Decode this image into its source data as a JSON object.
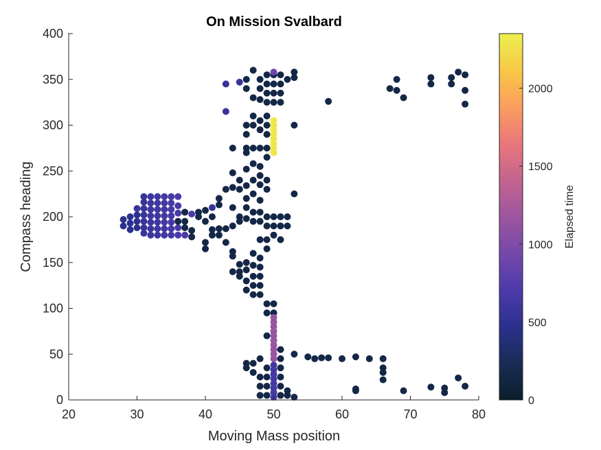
{
  "chart_data": {
    "type": "scatter",
    "title": "On Mission Svalbard",
    "xlabel": "Moving Mass position",
    "ylabel": "Compass heading",
    "xlim": [
      20,
      80
    ],
    "ylim": [
      0,
      400
    ],
    "xticks": [
      20,
      30,
      40,
      50,
      60,
      70,
      80
    ],
    "yticks": [
      0,
      50,
      100,
      150,
      200,
      250,
      300,
      350,
      400
    ],
    "grid": false,
    "legend": "none",
    "colorbar": {
      "label": "Elapsed time",
      "range": [
        0,
        2350
      ],
      "ticks": [
        0,
        500,
        1000,
        1500,
        2000
      ],
      "colormap": [
        "#0a1e2b",
        "#1a2c55",
        "#2b318e",
        "#4d3aab",
        "#7548aa",
        "#9d569f",
        "#c46390",
        "#e9777c",
        "#fb9d5e",
        "#f8c846",
        "#ecf04f"
      ]
    },
    "points": [
      {
        "x": 28,
        "y": 190,
        "c": 480
      },
      {
        "x": 28,
        "y": 197,
        "c": 480
      },
      {
        "x": 29,
        "y": 186,
        "c": 480
      },
      {
        "x": 29,
        "y": 193,
        "c": 480
      },
      {
        "x": 29,
        "y": 200,
        "c": 480
      },
      {
        "x": 30,
        "y": 188,
        "c": 480
      },
      {
        "x": 30,
        "y": 195,
        "c": 480
      },
      {
        "x": 30,
        "y": 202,
        "c": 480
      },
      {
        "x": 30,
        "y": 209,
        "c": 560
      },
      {
        "x": 31,
        "y": 182,
        "c": 560
      },
      {
        "x": 31,
        "y": 188,
        "c": 560
      },
      {
        "x": 31,
        "y": 195,
        "c": 560
      },
      {
        "x": 31,
        "y": 202,
        "c": 560
      },
      {
        "x": 31,
        "y": 209,
        "c": 560
      },
      {
        "x": 31,
        "y": 216,
        "c": 560
      },
      {
        "x": 31,
        "y": 222,
        "c": 560
      },
      {
        "x": 32,
        "y": 180,
        "c": 600
      },
      {
        "x": 32,
        "y": 187,
        "c": 600
      },
      {
        "x": 32,
        "y": 194,
        "c": 600
      },
      {
        "x": 32,
        "y": 201,
        "c": 600
      },
      {
        "x": 32,
        "y": 208,
        "c": 600
      },
      {
        "x": 32,
        "y": 215,
        "c": 600
      },
      {
        "x": 32,
        "y": 222,
        "c": 600
      },
      {
        "x": 33,
        "y": 180,
        "c": 620
      },
      {
        "x": 33,
        "y": 187,
        "c": 620
      },
      {
        "x": 33,
        "y": 194,
        "c": 620
      },
      {
        "x": 33,
        "y": 201,
        "c": 620
      },
      {
        "x": 33,
        "y": 208,
        "c": 620
      },
      {
        "x": 33,
        "y": 215,
        "c": 620
      },
      {
        "x": 33,
        "y": 222,
        "c": 620
      },
      {
        "x": 34,
        "y": 180,
        "c": 640
      },
      {
        "x": 34,
        "y": 187,
        "c": 640
      },
      {
        "x": 34,
        "y": 194,
        "c": 640
      },
      {
        "x": 34,
        "y": 201,
        "c": 640
      },
      {
        "x": 34,
        "y": 208,
        "c": 640
      },
      {
        "x": 34,
        "y": 215,
        "c": 640
      },
      {
        "x": 34,
        "y": 222,
        "c": 640
      },
      {
        "x": 35,
        "y": 180,
        "c": 660
      },
      {
        "x": 35,
        "y": 187,
        "c": 660
      },
      {
        "x": 35,
        "y": 194,
        "c": 660
      },
      {
        "x": 35,
        "y": 201,
        "c": 660
      },
      {
        "x": 35,
        "y": 208,
        "c": 660
      },
      {
        "x": 35,
        "y": 215,
        "c": 660
      },
      {
        "x": 35,
        "y": 222,
        "c": 660
      },
      {
        "x": 36,
        "y": 180,
        "c": 680
      },
      {
        "x": 36,
        "y": 188,
        "c": 680
      },
      {
        "x": 36,
        "y": 204,
        "c": 680
      },
      {
        "x": 36,
        "y": 212,
        "c": 680
      },
      {
        "x": 36,
        "y": 222,
        "c": 680
      },
      {
        "x": 37,
        "y": 180,
        "c": 700
      },
      {
        "x": 38,
        "y": 203,
        "c": 700
      },
      {
        "x": 41,
        "y": 210,
        "c": 560
      },
      {
        "x": 36,
        "y": 195,
        "c": 150
      },
      {
        "x": 37,
        "y": 195,
        "c": 150
      },
      {
        "x": 37,
        "y": 205,
        "c": 150
      },
      {
        "x": 37,
        "y": 188,
        "c": 150
      },
      {
        "x": 38,
        "y": 185,
        "c": 150
      },
      {
        "x": 38,
        "y": 178,
        "c": 150
      },
      {
        "x": 39,
        "y": 200,
        "c": 150
      },
      {
        "x": 39,
        "y": 205,
        "c": 150
      },
      {
        "x": 40,
        "y": 195,
        "c": 150
      },
      {
        "x": 40,
        "y": 207,
        "c": 150
      },
      {
        "x": 40,
        "y": 165,
        "c": 150
      },
      {
        "x": 40,
        "y": 172,
        "c": 150
      },
      {
        "x": 41,
        "y": 186,
        "c": 150
      },
      {
        "x": 41,
        "y": 180,
        "c": 150
      },
      {
        "x": 41,
        "y": 200,
        "c": 150
      },
      {
        "x": 42,
        "y": 187,
        "c": 150
      },
      {
        "x": 42,
        "y": 180,
        "c": 150
      },
      {
        "x": 42,
        "y": 213,
        "c": 150
      },
      {
        "x": 42,
        "y": 220,
        "c": 150
      },
      {
        "x": 43,
        "y": 187,
        "c": 150
      },
      {
        "x": 43,
        "y": 172,
        "c": 150
      },
      {
        "x": 43,
        "y": 230,
        "c": 150
      },
      {
        "x": 44,
        "y": 275,
        "c": 150
      },
      {
        "x": 44,
        "y": 248,
        "c": 150
      },
      {
        "x": 44,
        "y": 232,
        "c": 150
      },
      {
        "x": 44,
        "y": 210,
        "c": 150
      },
      {
        "x": 44,
        "y": 190,
        "c": 150
      },
      {
        "x": 44,
        "y": 162,
        "c": 150
      },
      {
        "x": 44,
        "y": 157,
        "c": 150
      },
      {
        "x": 44,
        "y": 140,
        "c": 150
      },
      {
        "x": 45,
        "y": 240,
        "c": 150
      },
      {
        "x": 45,
        "y": 230,
        "c": 150
      },
      {
        "x": 45,
        "y": 200,
        "c": 150
      },
      {
        "x": 45,
        "y": 195,
        "c": 150
      },
      {
        "x": 45,
        "y": 148,
        "c": 150
      },
      {
        "x": 45,
        "y": 140,
        "c": 150
      },
      {
        "x": 45,
        "y": 135,
        "c": 150
      },
      {
        "x": 46,
        "y": 350,
        "c": 150
      },
      {
        "x": 46,
        "y": 340,
        "c": 150
      },
      {
        "x": 46,
        "y": 300,
        "c": 150
      },
      {
        "x": 46,
        "y": 290,
        "c": 150
      },
      {
        "x": 46,
        "y": 275,
        "c": 150
      },
      {
        "x": 46,
        "y": 270,
        "c": 150
      },
      {
        "x": 46,
        "y": 252,
        "c": 150
      },
      {
        "x": 46,
        "y": 234,
        "c": 150
      },
      {
        "x": 46,
        "y": 220,
        "c": 150
      },
      {
        "x": 46,
        "y": 210,
        "c": 150
      },
      {
        "x": 46,
        "y": 198,
        "c": 150
      },
      {
        "x": 46,
        "y": 150,
        "c": 150
      },
      {
        "x": 46,
        "y": 142,
        "c": 150
      },
      {
        "x": 46,
        "y": 130,
        "c": 150
      },
      {
        "x": 46,
        "y": 120,
        "c": 150
      },
      {
        "x": 46,
        "y": 40,
        "c": 150
      },
      {
        "x": 46,
        "y": 35,
        "c": 150
      },
      {
        "x": 47,
        "y": 360,
        "c": 150
      },
      {
        "x": 47,
        "y": 330,
        "c": 150
      },
      {
        "x": 47,
        "y": 310,
        "c": 150
      },
      {
        "x": 47,
        "y": 300,
        "c": 150
      },
      {
        "x": 47,
        "y": 275,
        "c": 150
      },
      {
        "x": 47,
        "y": 258,
        "c": 150
      },
      {
        "x": 47,
        "y": 240,
        "c": 150
      },
      {
        "x": 47,
        "y": 225,
        "c": 150
      },
      {
        "x": 47,
        "y": 205,
        "c": 150
      },
      {
        "x": 47,
        "y": 195,
        "c": 150
      },
      {
        "x": 47,
        "y": 160,
        "c": 150
      },
      {
        "x": 47,
        "y": 147,
        "c": 150
      },
      {
        "x": 47,
        "y": 135,
        "c": 150
      },
      {
        "x": 47,
        "y": 125,
        "c": 150
      },
      {
        "x": 47,
        "y": 115,
        "c": 150
      },
      {
        "x": 47,
        "y": 40,
        "c": 150
      },
      {
        "x": 47,
        "y": 30,
        "c": 150
      },
      {
        "x": 48,
        "y": 350,
        "c": 150
      },
      {
        "x": 48,
        "y": 340,
        "c": 150
      },
      {
        "x": 48,
        "y": 328,
        "c": 150
      },
      {
        "x": 48,
        "y": 305,
        "c": 150
      },
      {
        "x": 48,
        "y": 295,
        "c": 150
      },
      {
        "x": 48,
        "y": 275,
        "c": 150
      },
      {
        "x": 48,
        "y": 255,
        "c": 150
      },
      {
        "x": 48,
        "y": 245,
        "c": 150
      },
      {
        "x": 48,
        "y": 235,
        "c": 150
      },
      {
        "x": 48,
        "y": 218,
        "c": 150
      },
      {
        "x": 48,
        "y": 205,
        "c": 150
      },
      {
        "x": 48,
        "y": 195,
        "c": 150
      },
      {
        "x": 48,
        "y": 175,
        "c": 150
      },
      {
        "x": 48,
        "y": 155,
        "c": 150
      },
      {
        "x": 48,
        "y": 145,
        "c": 150
      },
      {
        "x": 48,
        "y": 135,
        "c": 150
      },
      {
        "x": 48,
        "y": 125,
        "c": 150
      },
      {
        "x": 48,
        "y": 115,
        "c": 150
      },
      {
        "x": 48,
        "y": 45,
        "c": 150
      },
      {
        "x": 48,
        "y": 25,
        "c": 150
      },
      {
        "x": 48,
        "y": 15,
        "c": 150
      },
      {
        "x": 48,
        "y": 5,
        "c": 150
      },
      {
        "x": 49,
        "y": 355,
        "c": 150
      },
      {
        "x": 49,
        "y": 345,
        "c": 150
      },
      {
        "x": 49,
        "y": 335,
        "c": 150
      },
      {
        "x": 49,
        "y": 325,
        "c": 150
      },
      {
        "x": 49,
        "y": 310,
        "c": 150
      },
      {
        "x": 49,
        "y": 300,
        "c": 150
      },
      {
        "x": 49,
        "y": 290,
        "c": 150
      },
      {
        "x": 49,
        "y": 275,
        "c": 150
      },
      {
        "x": 49,
        "y": 265,
        "c": 150
      },
      {
        "x": 49,
        "y": 240,
        "c": 150
      },
      {
        "x": 49,
        "y": 230,
        "c": 150
      },
      {
        "x": 49,
        "y": 200,
        "c": 150
      },
      {
        "x": 49,
        "y": 190,
        "c": 150
      },
      {
        "x": 49,
        "y": 175,
        "c": 150
      },
      {
        "x": 49,
        "y": 165,
        "c": 150
      },
      {
        "x": 49,
        "y": 105,
        "c": 150
      },
      {
        "x": 49,
        "y": 95,
        "c": 150
      },
      {
        "x": 49,
        "y": 70,
        "c": 150
      },
      {
        "x": 49,
        "y": 35,
        "c": 150
      },
      {
        "x": 49,
        "y": 25,
        "c": 150
      },
      {
        "x": 49,
        "y": 15,
        "c": 150
      },
      {
        "x": 49,
        "y": 5,
        "c": 150
      },
      {
        "x": 50,
        "y": 355,
        "c": 150
      },
      {
        "x": 50,
        "y": 345,
        "c": 150
      },
      {
        "x": 50,
        "y": 335,
        "c": 150
      },
      {
        "x": 50,
        "y": 325,
        "c": 150
      },
      {
        "x": 50,
        "y": 200,
        "c": 150
      },
      {
        "x": 50,
        "y": 190,
        "c": 150
      },
      {
        "x": 50,
        "y": 180,
        "c": 150
      },
      {
        "x": 50,
        "y": 105,
        "c": 150
      },
      {
        "x": 50,
        "y": 95,
        "c": 150
      },
      {
        "x": 51,
        "y": 355,
        "c": 150
      },
      {
        "x": 51,
        "y": 345,
        "c": 150
      },
      {
        "x": 51,
        "y": 335,
        "c": 150
      },
      {
        "x": 51,
        "y": 325,
        "c": 150
      },
      {
        "x": 51,
        "y": 200,
        "c": 150
      },
      {
        "x": 51,
        "y": 190,
        "c": 150
      },
      {
        "x": 51,
        "y": 175,
        "c": 150
      },
      {
        "x": 51,
        "y": 55,
        "c": 150
      },
      {
        "x": 51,
        "y": 45,
        "c": 150
      },
      {
        "x": 51,
        "y": 35,
        "c": 150
      },
      {
        "x": 51,
        "y": 25,
        "c": 150
      },
      {
        "x": 51,
        "y": 15,
        "c": 150
      },
      {
        "x": 51,
        "y": 5,
        "c": 150
      },
      {
        "x": 52,
        "y": 350,
        "c": 150
      },
      {
        "x": 52,
        "y": 200,
        "c": 150
      },
      {
        "x": 52,
        "y": 190,
        "c": 150
      },
      {
        "x": 52,
        "y": 10,
        "c": 150
      },
      {
        "x": 52,
        "y": 5,
        "c": 150
      },
      {
        "x": 53,
        "y": 358,
        "c": 150
      },
      {
        "x": 53,
        "y": 352,
        "c": 150
      },
      {
        "x": 53,
        "y": 300,
        "c": 150
      },
      {
        "x": 53,
        "y": 225,
        "c": 150
      },
      {
        "x": 53,
        "y": 50,
        "c": 150
      },
      {
        "x": 53,
        "y": 3,
        "c": 150
      },
      {
        "x": 55,
        "y": 47,
        "c": 150
      },
      {
        "x": 56,
        "y": 45,
        "c": 150
      },
      {
        "x": 57,
        "y": 46,
        "c": 150
      },
      {
        "x": 58,
        "y": 326,
        "c": 150
      },
      {
        "x": 58,
        "y": 46,
        "c": 150
      },
      {
        "x": 60,
        "y": 45,
        "c": 150
      },
      {
        "x": 62,
        "y": 47,
        "c": 150
      },
      {
        "x": 62,
        "y": 12,
        "c": 150
      },
      {
        "x": 62,
        "y": 10,
        "c": 150
      },
      {
        "x": 64,
        "y": 45,
        "c": 150
      },
      {
        "x": 66,
        "y": 45,
        "c": 150
      },
      {
        "x": 66,
        "y": 35,
        "c": 150
      },
      {
        "x": 66,
        "y": 30,
        "c": 150
      },
      {
        "x": 66,
        "y": 22,
        "c": 150
      },
      {
        "x": 67,
        "y": 340,
        "c": 150
      },
      {
        "x": 68,
        "y": 350,
        "c": 150
      },
      {
        "x": 68,
        "y": 338,
        "c": 150
      },
      {
        "x": 69,
        "y": 330,
        "c": 150
      },
      {
        "x": 69,
        "y": 10,
        "c": 150
      },
      {
        "x": 73,
        "y": 352,
        "c": 150
      },
      {
        "x": 73,
        "y": 345,
        "c": 150
      },
      {
        "x": 73,
        "y": 14,
        "c": 150
      },
      {
        "x": 75,
        "y": 13,
        "c": 150
      },
      {
        "x": 75,
        "y": 8,
        "c": 150
      },
      {
        "x": 76,
        "y": 352,
        "c": 150
      },
      {
        "x": 76,
        "y": 345,
        "c": 150
      },
      {
        "x": 77,
        "y": 358,
        "c": 150
      },
      {
        "x": 77,
        "y": 24,
        "c": 150
      },
      {
        "x": 78,
        "y": 355,
        "c": 150
      },
      {
        "x": 78,
        "y": 338,
        "c": 150
      },
      {
        "x": 78,
        "y": 323,
        "c": 150
      },
      {
        "x": 78,
        "y": 15,
        "c": 150
      },
      {
        "x": 43,
        "y": 345,
        "c": 560
      },
      {
        "x": 43,
        "y": 315,
        "c": 560
      },
      {
        "x": 45,
        "y": 347,
        "c": 560
      },
      {
        "x": 50,
        "y": 358,
        "c": 900
      },
      {
        "x": 50,
        "y": 305,
        "c": 2300
      },
      {
        "x": 50,
        "y": 300,
        "c": 2300
      },
      {
        "x": 50,
        "y": 295,
        "c": 2300
      },
      {
        "x": 50,
        "y": 290,
        "c": 2300
      },
      {
        "x": 50,
        "y": 285,
        "c": 2300
      },
      {
        "x": 50,
        "y": 280,
        "c": 2300
      },
      {
        "x": 50,
        "y": 275,
        "c": 2300
      },
      {
        "x": 50,
        "y": 270,
        "c": 2300
      },
      {
        "x": 50,
        "y": 90,
        "c": 1150
      },
      {
        "x": 50,
        "y": 85,
        "c": 1150
      },
      {
        "x": 50,
        "y": 80,
        "c": 1150
      },
      {
        "x": 50,
        "y": 75,
        "c": 1150
      },
      {
        "x": 50,
        "y": 70,
        "c": 1150
      },
      {
        "x": 50,
        "y": 65,
        "c": 1150
      },
      {
        "x": 50,
        "y": 60,
        "c": 1150
      },
      {
        "x": 50,
        "y": 55,
        "c": 1150
      },
      {
        "x": 50,
        "y": 50,
        "c": 1150
      },
      {
        "x": 50,
        "y": 45,
        "c": 1150
      },
      {
        "x": 50,
        "y": 38,
        "c": 650
      },
      {
        "x": 50,
        "y": 33,
        "c": 650
      },
      {
        "x": 50,
        "y": 28,
        "c": 650
      },
      {
        "x": 50,
        "y": 23,
        "c": 650
      },
      {
        "x": 50,
        "y": 18,
        "c": 650
      },
      {
        "x": 50,
        "y": 13,
        "c": 650
      },
      {
        "x": 50,
        "y": 8,
        "c": 650
      },
      {
        "x": 50,
        "y": 3,
        "c": 650
      }
    ]
  }
}
